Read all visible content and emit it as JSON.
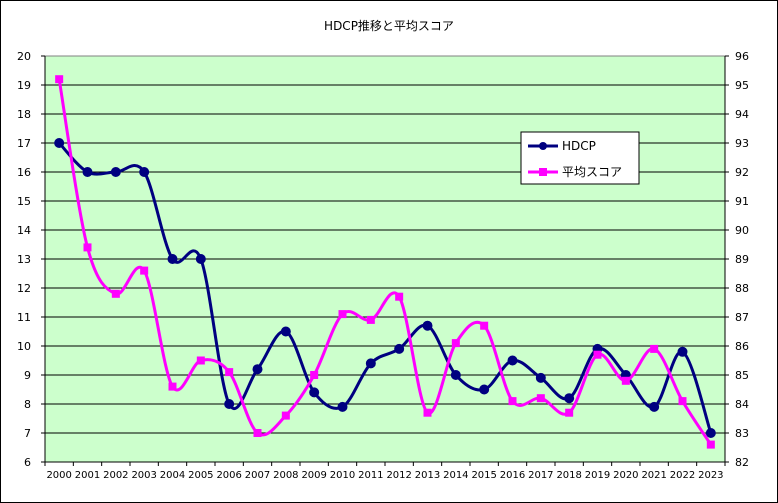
{
  "chart_data": {
    "type": "line",
    "title": "HDCP推移と平均スコア",
    "x": [
      "2000",
      "2001",
      "2002",
      "2003",
      "2004",
      "2005",
      "2006",
      "2007",
      "2008",
      "2009",
      "2010",
      "2011",
      "2012",
      "2013",
      "2014",
      "2015",
      "2016",
      "2017",
      "2018",
      "2019",
      "2020",
      "2021",
      "2022",
      "2023"
    ],
    "y_left": {
      "min": 6,
      "max": 20,
      "step": 1
    },
    "y_right": {
      "min": 82,
      "max": 96,
      "step": 1
    },
    "grid": true,
    "legend": "right",
    "plot_background": "#ccffcc",
    "series": [
      {
        "name": "HDCP",
        "axis": "left",
        "color": "#000080",
        "marker": "circle",
        "values": [
          17,
          16,
          16,
          16,
          13,
          13,
          8,
          9.2,
          10.5,
          8.4,
          7.9,
          9.4,
          9.9,
          10.7,
          9.0,
          8.5,
          9.5,
          8.9,
          8.2,
          9.9,
          9.0,
          7.9,
          9.8,
          7.0
        ]
      },
      {
        "name": "平均スコア",
        "axis": "right",
        "color": "#ff00ff",
        "marker": "square",
        "values": [
          95.2,
          89.4,
          87.8,
          88.6,
          84.6,
          85.5,
          85.1,
          83.0,
          83.6,
          85.0,
          87.1,
          86.9,
          87.7,
          83.7,
          86.1,
          86.7,
          84.1,
          84.2,
          83.7,
          85.7,
          84.8,
          85.9,
          84.1,
          82.6
        ]
      }
    ]
  }
}
